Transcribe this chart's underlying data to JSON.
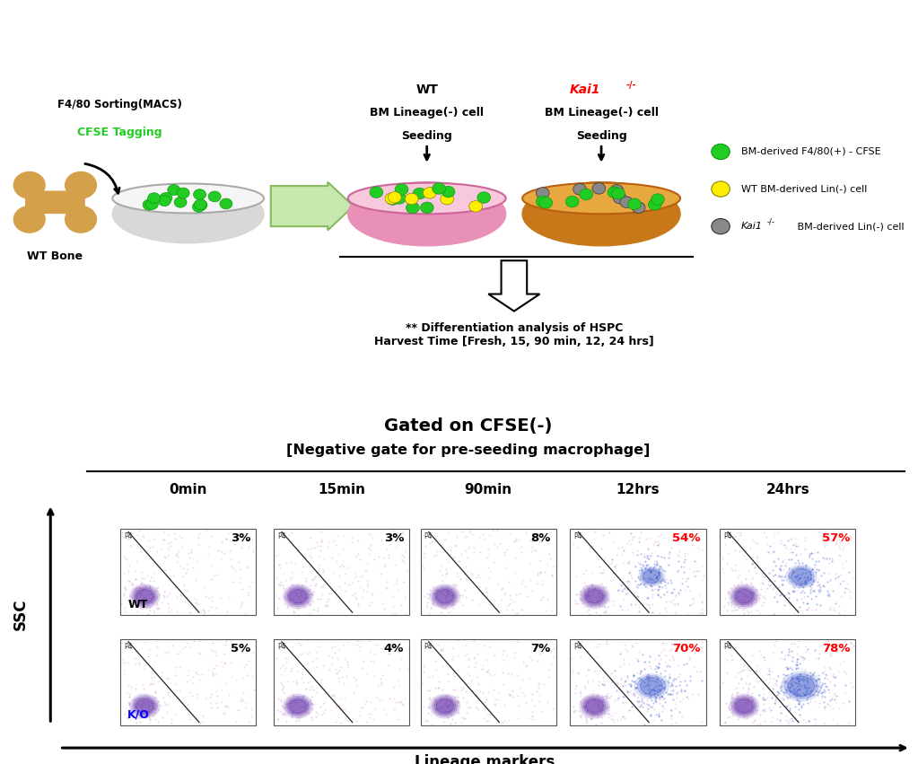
{
  "fig_width": 10.23,
  "fig_height": 8.51,
  "top_section": {
    "bone_label": "WT Bone",
    "sorting_line1": "F4/80 Sorting(MACS)",
    "sorting_line2": "CFSE Tagging",
    "wt_label_line1": "WT",
    "wt_label_line2": "BM Lineage(-) cell",
    "wt_label_line3": "Seeding",
    "kai_label_line1": "Kai1",
    "kai_label_line2": "BM Lineage(-) cell",
    "kai_label_line3": "Seeding",
    "arrow_text": "** Differentiation analysis of HSPC\nHarvest Time [Fresh, 15, 90 min, 12, 24 hrs]",
    "legend_green": "BM-derived F4/80(+) - CFSE",
    "legend_yellow": "WT BM-derived Lin(-) cell",
    "legend_gray": "Kai1",
    "legend_gray2": " BM-derived Lin(-) cell"
  },
  "bottom_section": {
    "title_line1": "Gated on CFSE(-)",
    "title_line2": "[Negative gate for pre-seeding macrophage]",
    "col_labels": [
      "0min",
      "15min",
      "90min",
      "12hrs",
      "24hrs"
    ],
    "row_labels": [
      "WT",
      "K/O"
    ],
    "wt_percentages": [
      "3%",
      "3%",
      "8%",
      "54%",
      "57%"
    ],
    "ko_percentages": [
      "5%",
      "4%",
      "7%",
      "70%",
      "78%"
    ],
    "wt_pct_colors": [
      "black",
      "black",
      "black",
      "red",
      "red"
    ],
    "ko_pct_colors": [
      "black",
      "black",
      "black",
      "red",
      "red"
    ],
    "xlabel": "Lineage markers",
    "ylabel": "SSC",
    "gate_label": "P4"
  }
}
